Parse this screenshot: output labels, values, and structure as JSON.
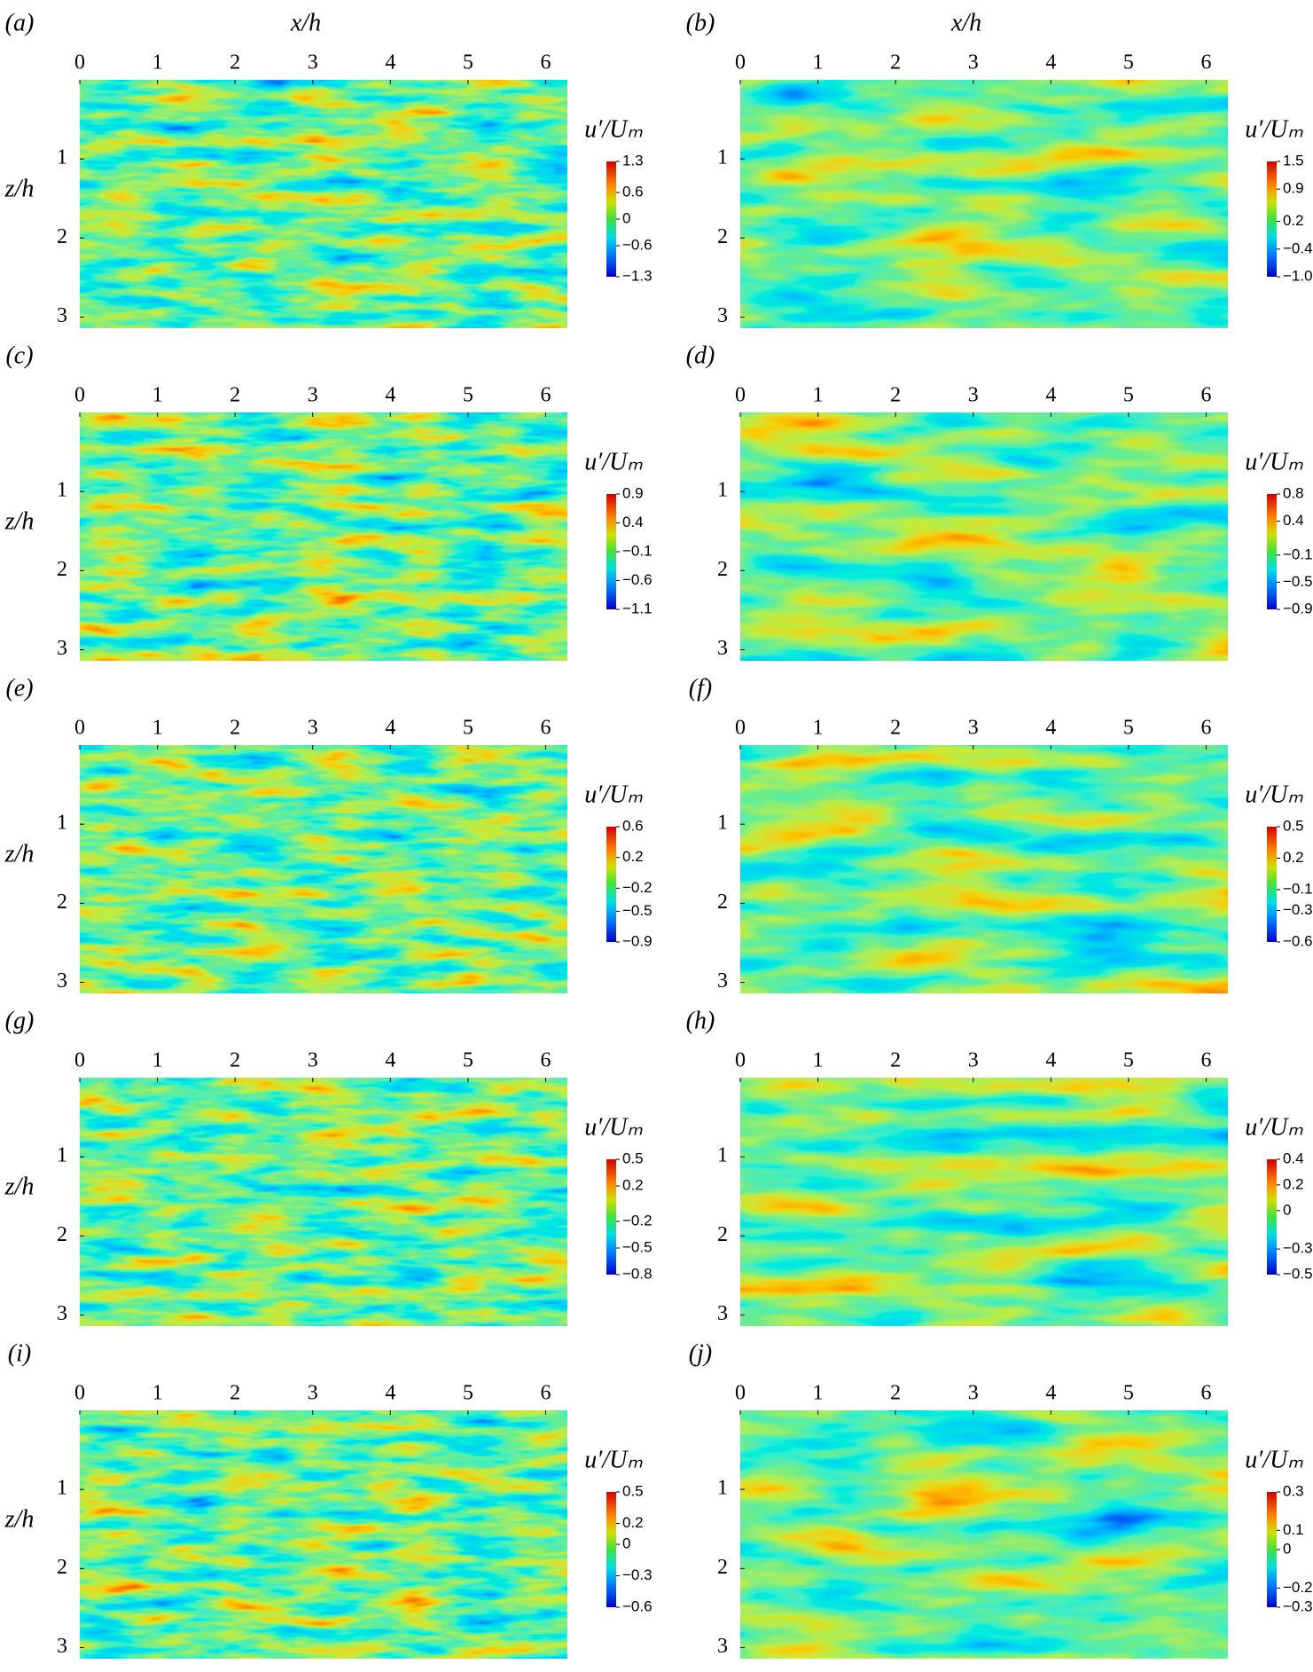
{
  "chart_data": [
    {
      "type": "heatmap",
      "panel_label": "(a)",
      "xlabel": "x/h",
      "ylabel": "z/h",
      "colorbar_title": "u′/Uₘ",
      "xlim": [
        0,
        6.28
      ],
      "ylim": [
        0,
        3.14
      ],
      "xticks": [
        0,
        1,
        2,
        3,
        4,
        5,
        6
      ],
      "yticks": [
        1,
        2,
        3
      ],
      "clim": [
        -1.3,
        1.3
      ],
      "cticks": [
        1.3,
        0.6,
        0,
        {
          "value": -0.6,
          "label": "−0.6"
        },
        {
          "value": -1.3,
          "label": "−1.3"
        }
      ]
    },
    {
      "type": "heatmap",
      "panel_label": "(b)",
      "xlabel": "x/h",
      "colorbar_title": "u′/Uₘ",
      "xlim": [
        0,
        6.28
      ],
      "ylim": [
        0,
        3.14
      ],
      "xticks": [
        0,
        1,
        2,
        3,
        4,
        5,
        6
      ],
      "yticks": [
        1,
        2,
        3
      ],
      "clim": [
        -1.0,
        1.5
      ],
      "cticks": [
        1.5,
        0.9,
        0.2,
        {
          "value": -0.4,
          "label": "−0.4"
        },
        {
          "value": -1.0,
          "label": "−1.0"
        }
      ]
    },
    {
      "type": "heatmap",
      "panel_label": "(c)",
      "ylabel": "z/h",
      "colorbar_title": "u′/Uₘ",
      "xlim": [
        0,
        6.28
      ],
      "ylim": [
        0,
        3.14
      ],
      "xticks": [
        0,
        1,
        2,
        3,
        4,
        5,
        6
      ],
      "yticks": [
        1,
        2,
        3
      ],
      "clim": [
        -1.1,
        0.9
      ],
      "cticks": [
        0.9,
        0.4,
        {
          "value": -0.1,
          "label": "−0.1"
        },
        {
          "value": -0.6,
          "label": "−0.6"
        },
        {
          "value": -1.1,
          "label": "−1.1"
        }
      ]
    },
    {
      "type": "heatmap",
      "panel_label": "(d)",
      "colorbar_title": "u′/Uₘ",
      "xlim": [
        0,
        6.28
      ],
      "ylim": [
        0,
        3.14
      ],
      "xticks": [
        0,
        1,
        2,
        3,
        4,
        5,
        6
      ],
      "yticks": [
        1,
        2,
        3
      ],
      "clim": [
        -0.9,
        0.8
      ],
      "cticks": [
        0.8,
        0.4,
        {
          "value": -0.1,
          "label": "−0.1"
        },
        {
          "value": -0.5,
          "label": "−0.5"
        },
        {
          "value": -0.9,
          "label": "−0.9"
        }
      ]
    },
    {
      "type": "heatmap",
      "panel_label": "(e)",
      "ylabel": "z/h",
      "colorbar_title": "u′/Uₘ",
      "xlim": [
        0,
        6.28
      ],
      "ylim": [
        0,
        3.14
      ],
      "xticks": [
        0,
        1,
        2,
        3,
        4,
        5,
        6
      ],
      "yticks": [
        1,
        2,
        3
      ],
      "clim": [
        -0.9,
        0.6
      ],
      "cticks": [
        0.6,
        0.2,
        {
          "value": -0.2,
          "label": "−0.2"
        },
        {
          "value": -0.5,
          "label": "−0.5"
        },
        {
          "value": -0.9,
          "label": "−0.9"
        }
      ]
    },
    {
      "type": "heatmap",
      "panel_label": "(f)",
      "colorbar_title": "u′/Uₘ",
      "xlim": [
        0,
        6.28
      ],
      "ylim": [
        0,
        3.14
      ],
      "xticks": [
        0,
        1,
        2,
        3,
        4,
        5,
        6
      ],
      "yticks": [
        1,
        2,
        3
      ],
      "clim": [
        -0.6,
        0.5
      ],
      "cticks": [
        0.5,
        0.2,
        {
          "value": -0.1,
          "label": "−0.1"
        },
        {
          "value": -0.3,
          "label": "−0.3"
        },
        {
          "value": -0.6,
          "label": "−0.6"
        }
      ]
    },
    {
      "type": "heatmap",
      "panel_label": "(g)",
      "ylabel": "z/h",
      "colorbar_title": "u′/Uₘ",
      "xlim": [
        0,
        6.28
      ],
      "ylim": [
        0,
        3.14
      ],
      "xticks": [
        0,
        1,
        2,
        3,
        4,
        5,
        6
      ],
      "yticks": [
        1,
        2,
        3
      ],
      "clim": [
        -0.8,
        0.5
      ],
      "cticks": [
        0.5,
        0.2,
        {
          "value": -0.2,
          "label": "−0.2"
        },
        {
          "value": -0.5,
          "label": "−0.5"
        },
        {
          "value": -0.8,
          "label": "−0.8"
        }
      ]
    },
    {
      "type": "heatmap",
      "panel_label": "(h)",
      "colorbar_title": "u′/Uₘ",
      "xlim": [
        0,
        6.28
      ],
      "ylim": [
        0,
        3.14
      ],
      "xticks": [
        0,
        1,
        2,
        3,
        4,
        5,
        6
      ],
      "yticks": [
        1,
        2,
        3
      ],
      "clim": [
        -0.5,
        0.4
      ],
      "cticks": [
        0.4,
        0.2,
        0,
        {
          "value": -0.3,
          "label": "−0.3"
        },
        {
          "value": -0.5,
          "label": "−0.5"
        }
      ]
    },
    {
      "type": "heatmap",
      "panel_label": "(i)",
      "ylabel": "z/h",
      "colorbar_title": "u′/Uₘ",
      "xlim": [
        0,
        6.28
      ],
      "ylim": [
        0,
        3.14
      ],
      "xticks": [
        0,
        1,
        2,
        3,
        4,
        5,
        6
      ],
      "yticks": [
        1,
        2,
        3
      ],
      "clim": [
        -0.6,
        0.5
      ],
      "cticks": [
        0.5,
        0.2,
        0,
        {
          "value": -0.3,
          "label": "−0.3"
        },
        {
          "value": -0.6,
          "label": "−0.6"
        }
      ]
    },
    {
      "type": "heatmap",
      "panel_label": "(j)",
      "colorbar_title": "u′/Uₘ",
      "xlim": [
        0,
        6.28
      ],
      "ylim": [
        0,
        3.14
      ],
      "xticks": [
        0,
        1,
        2,
        3,
        4,
        5,
        6
      ],
      "yticks": [
        1,
        2,
        3
      ],
      "clim": [
        -0.3,
        0.3
      ],
      "cticks": [
        0.3,
        0.1,
        0,
        {
          "value": -0.2,
          "label": "−0.2"
        },
        {
          "value": -0.3,
          "label": "−0.3"
        }
      ]
    }
  ]
}
